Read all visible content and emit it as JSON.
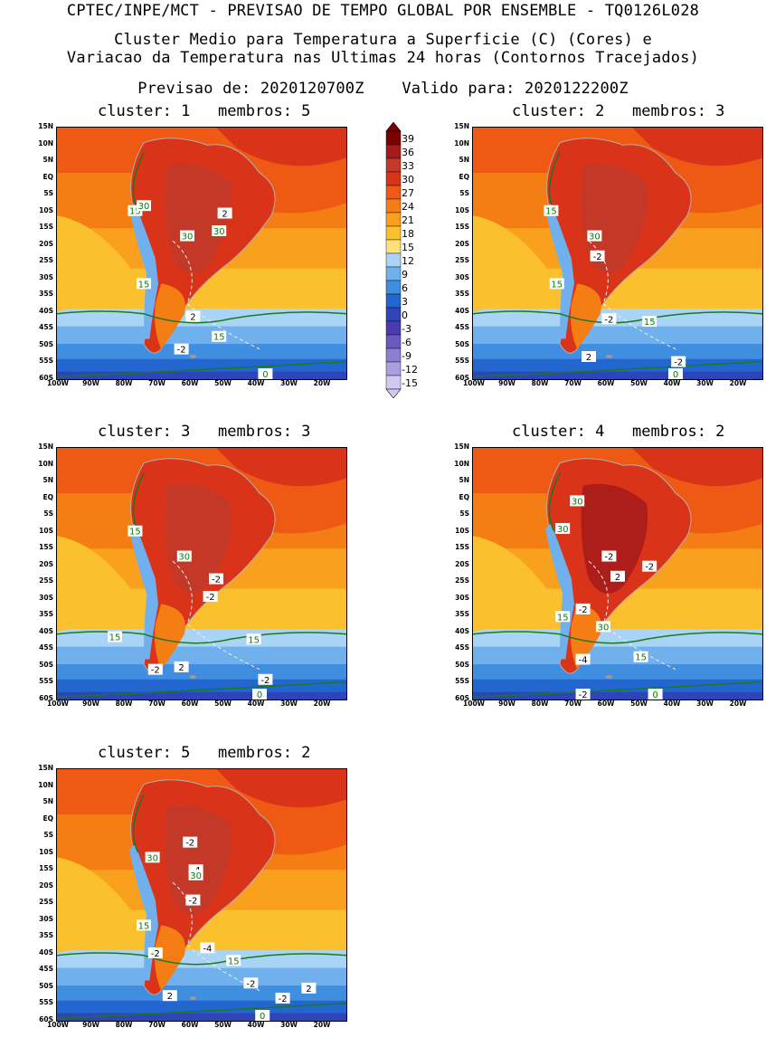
{
  "header": {
    "line1": "CPTEC/INPE/MCT - PREVISAO DE TEMPO GLOBAL POR ENSEMBLE - TQ0126L028",
    "line2": "Cluster Medio para Temperatura a Superficie (C) (Cores) e",
    "line3": "Variacao da Temperatura nas Ultimas 24 horas (Contornos Tracejados)",
    "line4": "Previsao de: 2020120700Z    Valido para: 2020122200Z"
  },
  "lat_labels": [
    "15N",
    "10N",
    "5N",
    "EQ",
    "5S",
    "10S",
    "15S",
    "20S",
    "25S",
    "30S",
    "35S",
    "40S",
    "45S",
    "50S",
    "55S",
    "60S"
  ],
  "lon_labels": [
    "100W",
    "90W",
    "80W",
    "70W",
    "60W",
    "50W",
    "40W",
    "30W",
    "20W"
  ],
  "colorbar": {
    "labels": [
      "39",
      "36",
      "33",
      "30",
      "27",
      "24",
      "21",
      "18",
      "15",
      "12",
      "9",
      "6",
      "3",
      "0",
      "-3",
      "-6",
      "-9",
      "-12",
      "-15"
    ],
    "colors": [
      "#7a0000",
      "#a51a1a",
      "#c0392b",
      "#d9341a",
      "#ee5a14",
      "#f47d14",
      "#f9a01f",
      "#fbc02d",
      "#fde17a",
      "#a9d4f5",
      "#70b0ec",
      "#3f8ee0",
      "#2366cf",
      "#2e44b8",
      "#4a3bb0",
      "#6a5ac0",
      "#8b7fd0",
      "#ac9fe0",
      "#d3c8f0"
    ]
  },
  "panels": [
    {
      "title": "cluster: 1   membros: 5",
      "labels": [
        {
          "t": "15",
          "c": "g"
        },
        {
          "t": "30",
          "c": "g"
        },
        {
          "t": "30",
          "c": "g"
        },
        {
          "t": "30",
          "c": "g"
        },
        {
          "t": "2",
          "c": "w"
        },
        {
          "t": "15",
          "c": "g"
        },
        {
          "t": "2",
          "c": "w"
        },
        {
          "t": "15",
          "c": "g"
        },
        {
          "t": "-2",
          "c": "w"
        },
        {
          "t": "0",
          "c": "g"
        }
      ]
    },
    {
      "title": "cluster: 2   membros: 3",
      "labels": [
        {
          "t": "15",
          "c": "g"
        },
        {
          "t": "30",
          "c": "g"
        },
        {
          "t": "-2",
          "c": "w"
        },
        {
          "t": "15",
          "c": "g"
        },
        {
          "t": "-2",
          "c": "w"
        },
        {
          "t": "15",
          "c": "g"
        },
        {
          "t": "2",
          "c": "w"
        },
        {
          "t": "-2",
          "c": "w"
        },
        {
          "t": "0",
          "c": "g"
        }
      ]
    },
    {
      "title": "cluster: 3   membros: 3",
      "labels": [
        {
          "t": "15",
          "c": "g"
        },
        {
          "t": "30",
          "c": "g"
        },
        {
          "t": "-2",
          "c": "w"
        },
        {
          "t": "-2",
          "c": "w"
        },
        {
          "t": "15",
          "c": "g"
        },
        {
          "t": "15",
          "c": "g"
        },
        {
          "t": "-2",
          "c": "w"
        },
        {
          "t": "2",
          "c": "w"
        },
        {
          "t": "-2",
          "c": "w"
        },
        {
          "t": "0",
          "c": "g"
        }
      ]
    },
    {
      "title": "cluster: 4   membros: 2",
      "labels": [
        {
          "t": "30",
          "c": "g"
        },
        {
          "t": "30",
          "c": "g"
        },
        {
          "t": "-2",
          "c": "w"
        },
        {
          "t": "-2",
          "c": "w"
        },
        {
          "t": "2",
          "c": "w"
        },
        {
          "t": "15",
          "c": "g"
        },
        {
          "t": "-2",
          "c": "w"
        },
        {
          "t": "30",
          "c": "g"
        },
        {
          "t": "-4",
          "c": "w"
        },
        {
          "t": "15",
          "c": "g"
        },
        {
          "t": "-2",
          "c": "w"
        },
        {
          "t": "0",
          "c": "g"
        }
      ]
    },
    {
      "title": "cluster: 5   membros: 2",
      "labels": [
        {
          "t": "-2",
          "c": "w"
        },
        {
          "t": "30",
          "c": "g"
        },
        {
          "t": "-4",
          "c": "w"
        },
        {
          "t": "30",
          "c": "g"
        },
        {
          "t": "-2",
          "c": "w"
        },
        {
          "t": "15",
          "c": "g"
        },
        {
          "t": "-2",
          "c": "w"
        },
        {
          "t": "-4",
          "c": "w"
        },
        {
          "t": "15",
          "c": "g"
        },
        {
          "t": "-2",
          "c": "w"
        },
        {
          "t": "2",
          "c": "w"
        },
        {
          "t": "-2",
          "c": "w"
        },
        {
          "t": "2",
          "c": "w"
        },
        {
          "t": "0",
          "c": "g"
        }
      ]
    }
  ]
}
